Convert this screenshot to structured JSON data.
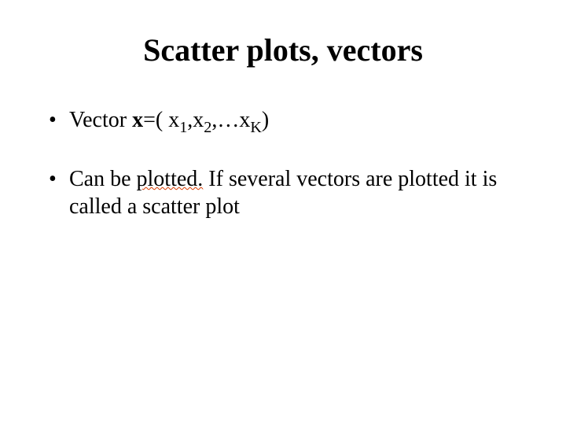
{
  "slide": {
    "title": "Scatter plots, vectors",
    "title_fontsize": 40,
    "title_weight": "bold",
    "bullets": [
      {
        "prefix": "Vector ",
        "vec_sym": "x",
        "eq": "=( x",
        "s1": "1",
        "c1": ",x",
        "s2": "2",
        "c2": ",…x",
        "sK": "K",
        "close": ")"
      },
      {
        "p1": "Can be ",
        "spell": "plotted.",
        "p2": " If several vectors are plotted it is called a scatter plot"
      }
    ],
    "colors": {
      "background": "#ffffff",
      "text": "#000000",
      "spell_underline": "#d83b01"
    },
    "body_fontsize": 28,
    "font_family": "Times New Roman"
  }
}
